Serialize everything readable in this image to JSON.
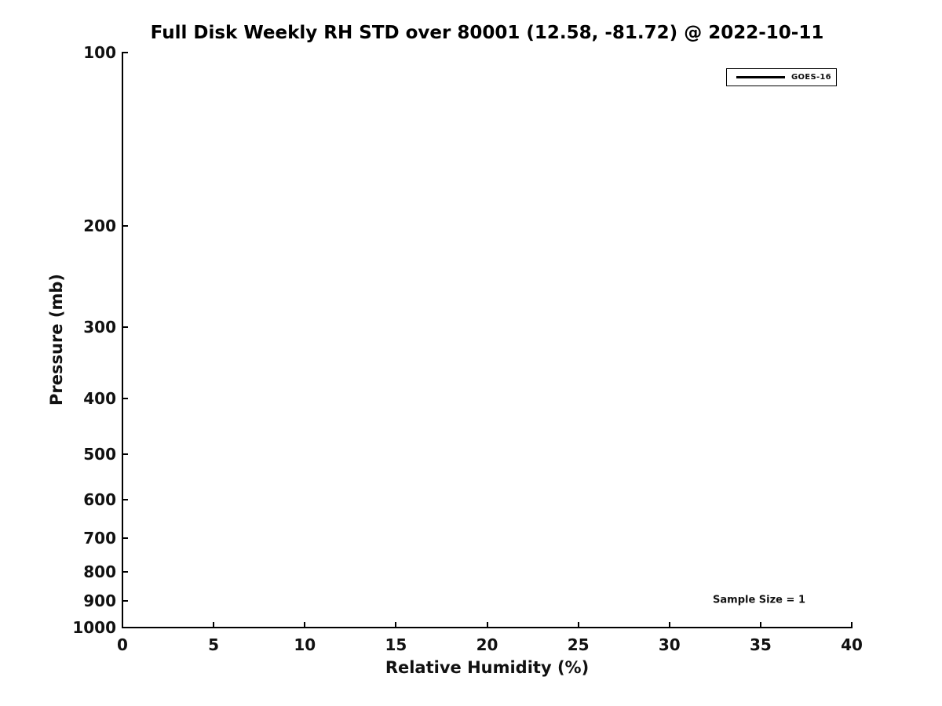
{
  "figure": {
    "title": "Full Disk Weekly RH STD over 80001 (12.58, -81.72) @ 2022-10-11"
  },
  "legend": {
    "entries": [
      {
        "label": "GOES-16",
        "color": "#000000"
      }
    ]
  },
  "annotation": {
    "text": "Sample Size = 1"
  },
  "colors": {
    "background": "#ffffff",
    "axis": "#000000",
    "text": "#111111",
    "series_goes16": "#000000"
  },
  "chart_data": {
    "type": "line",
    "title": "Full Disk Weekly RH STD over 80001 (12.58, -81.72) @ 2022-10-11",
    "xlabel": "Relative Humidity (%)",
    "ylabel": "Pressure (mb)",
    "xlim": [
      0,
      40
    ],
    "xticks": [
      0,
      5,
      10,
      15,
      20,
      25,
      30,
      35,
      40
    ],
    "ylim": [
      100,
      1000
    ],
    "yticks": [
      100,
      200,
      300,
      400,
      500,
      600,
      700,
      800,
      900,
      1000
    ],
    "yscale": "log",
    "y_axis_inverted": true,
    "grid": false,
    "legend_position": "upper right",
    "series": [
      {
        "name": "GOES-16",
        "color": "#000000",
        "x": [],
        "y": []
      }
    ],
    "annotations": [
      {
        "text": "Sample Size = 1",
        "x": 35,
        "y": 900
      }
    ]
  }
}
